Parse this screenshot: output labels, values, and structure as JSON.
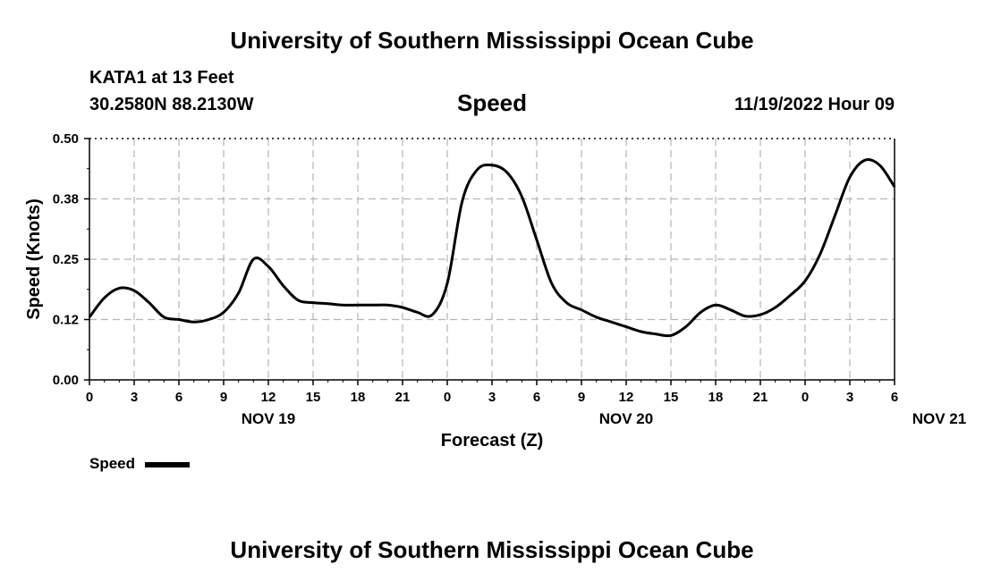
{
  "header": {
    "title_top": "University of Southern Mississippi Ocean Cube",
    "station": "KATA1 at 13 Feet",
    "coords": "30.2580N  88.2130W",
    "date_hour": "11/19/2022 Hour 09"
  },
  "footer": {
    "title_bottom": "University of Southern Mississippi Ocean Cube"
  },
  "chart_data": {
    "type": "line",
    "title": "Speed",
    "xlabel": "Forecast (Z)",
    "ylabel": "Speed (Knots)",
    "ylim": [
      0,
      0.5
    ],
    "y_ticks": [
      "0.00",
      "0.12",
      "0.25",
      "0.38",
      "0.50"
    ],
    "x_tick_labels": [
      "0",
      "3",
      "6",
      "9",
      "12",
      "15",
      "18",
      "21",
      "0",
      "3",
      "6",
      "9",
      "12",
      "15",
      "18",
      "21",
      "0",
      "3",
      "6"
    ],
    "day_labels": [
      {
        "label": "NOV 19",
        "hour": 12
      },
      {
        "label": "NOV 20",
        "hour": 36
      },
      {
        "label": "NOV 21",
        "hour": 57
      }
    ],
    "grid": true,
    "legend": "bottom-left",
    "series": [
      {
        "name": "Speed",
        "color": "#000000",
        "x": [
          0,
          1,
          2,
          3,
          4,
          5,
          6,
          7,
          8,
          9,
          10,
          11,
          12,
          13,
          14,
          15,
          16,
          17,
          18,
          19,
          20,
          21,
          22,
          23,
          24,
          25,
          26,
          27,
          28,
          29,
          30,
          31,
          32,
          33,
          34,
          35,
          36,
          37,
          38,
          39,
          40,
          41,
          42,
          43,
          44,
          45,
          46,
          47,
          48,
          49,
          50,
          51,
          52,
          53,
          54
        ],
        "values": [
          0.13,
          0.17,
          0.19,
          0.185,
          0.16,
          0.13,
          0.125,
          0.12,
          0.125,
          0.14,
          0.18,
          0.25,
          0.235,
          0.195,
          0.165,
          0.16,
          0.158,
          0.155,
          0.155,
          0.155,
          0.155,
          0.15,
          0.14,
          0.135,
          0.2,
          0.37,
          0.435,
          0.445,
          0.43,
          0.38,
          0.29,
          0.2,
          0.16,
          0.145,
          0.13,
          0.12,
          0.11,
          0.1,
          0.095,
          0.092,
          0.11,
          0.14,
          0.155,
          0.145,
          0.132,
          0.135,
          0.15,
          0.175,
          0.205,
          0.26,
          0.34,
          0.42,
          0.455,
          0.445,
          0.4
        ]
      }
    ]
  }
}
